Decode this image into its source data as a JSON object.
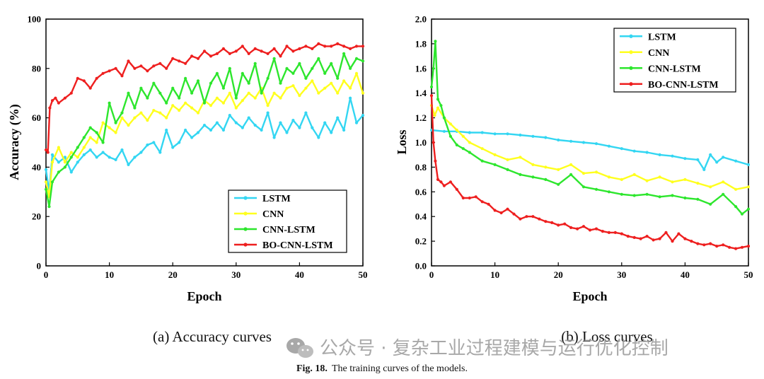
{
  "chart_data": [
    {
      "type": "line",
      "id": "acc",
      "xlabel": "Epoch",
      "ylabel": "Accuracy (%)",
      "xlim": [
        0,
        50
      ],
      "ylim": [
        0,
        100
      ],
      "xticks": [
        0,
        10,
        20,
        30,
        40,
        50
      ],
      "yticks": [
        0,
        20,
        40,
        60,
        80,
        100
      ],
      "legend_position": "bottom-right",
      "series": [
        {
          "name": "LSTM",
          "color": "#33d6f2",
          "x": [
            0,
            0.5,
            1,
            2,
            3,
            4,
            5,
            6,
            7,
            8,
            9,
            10,
            11,
            12,
            13,
            14,
            15,
            16,
            17,
            18,
            19,
            20,
            21,
            22,
            23,
            24,
            25,
            26,
            27,
            28,
            29,
            30,
            31,
            32,
            33,
            34,
            35,
            36,
            37,
            38,
            39,
            40,
            41,
            42,
            43,
            44,
            45,
            46,
            47,
            48,
            49,
            50
          ],
          "values": [
            39,
            30,
            45,
            42,
            44,
            38,
            42,
            45,
            47,
            44,
            46,
            44,
            43,
            47,
            41,
            44,
            46,
            49,
            50,
            46,
            55,
            48,
            50,
            55,
            52,
            54,
            57,
            55,
            58,
            55,
            61,
            58,
            56,
            60,
            57,
            55,
            62,
            52,
            58,
            54,
            59,
            56,
            62,
            56,
            52,
            58,
            54,
            60,
            55,
            68,
            58,
            61
          ]
        },
        {
          "name": "CNN",
          "color": "#ffff1e",
          "x": [
            0,
            0.5,
            1,
            2,
            3,
            4,
            5,
            6,
            7,
            8,
            9,
            10,
            11,
            12,
            13,
            14,
            15,
            16,
            17,
            18,
            19,
            20,
            21,
            22,
            23,
            24,
            25,
            26,
            27,
            28,
            29,
            30,
            31,
            32,
            33,
            34,
            35,
            36,
            37,
            38,
            39,
            40,
            41,
            42,
            43,
            44,
            45,
            46,
            47,
            48,
            49,
            50
          ],
          "values": [
            34,
            28,
            42,
            48,
            42,
            46,
            44,
            48,
            52,
            50,
            58,
            56,
            54,
            60,
            57,
            60,
            62,
            59,
            63,
            62,
            60,
            65,
            63,
            66,
            64,
            62,
            67,
            65,
            68,
            66,
            70,
            64,
            67,
            70,
            68,
            72,
            65,
            70,
            68,
            72,
            73,
            69,
            72,
            75,
            70,
            72,
            74,
            70,
            75,
            72,
            78,
            70
          ]
        },
        {
          "name": "CNN-LSTM",
          "color": "#2de62d",
          "x": [
            0,
            0.5,
            1,
            2,
            3,
            4,
            5,
            6,
            7,
            8,
            9,
            10,
            11,
            12,
            13,
            14,
            15,
            16,
            17,
            18,
            19,
            20,
            21,
            22,
            23,
            24,
            25,
            26,
            27,
            28,
            29,
            30,
            31,
            32,
            33,
            34,
            35,
            36,
            37,
            38,
            39,
            40,
            41,
            42,
            43,
            44,
            45,
            46,
            47,
            48,
            49,
            50
          ],
          "values": [
            31,
            24,
            34,
            38,
            40,
            44,
            48,
            52,
            56,
            54,
            50,
            66,
            58,
            62,
            70,
            64,
            72,
            68,
            74,
            70,
            66,
            72,
            68,
            76,
            70,
            75,
            66,
            74,
            78,
            72,
            80,
            68,
            78,
            74,
            82,
            70,
            76,
            84,
            74,
            80,
            78,
            82,
            76,
            80,
            84,
            78,
            82,
            76,
            86,
            80,
            84,
            83
          ]
        },
        {
          "name": "BO-CNN-LSTM",
          "color": "#ee1f1f",
          "x": [
            0,
            0.3,
            0.6,
            1,
            1.5,
            2,
            3,
            4,
            5,
            6,
            7,
            8,
            9,
            10,
            11,
            12,
            13,
            14,
            15,
            16,
            17,
            18,
            19,
            20,
            21,
            22,
            23,
            24,
            25,
            26,
            27,
            28,
            29,
            30,
            31,
            32,
            33,
            34,
            35,
            36,
            37,
            38,
            39,
            40,
            41,
            42,
            43,
            44,
            45,
            46,
            47,
            48,
            49,
            50
          ],
          "values": [
            47,
            46,
            64,
            67,
            68,
            66,
            68,
            70,
            76,
            75,
            72,
            76,
            78,
            79,
            80,
            77,
            83,
            80,
            81,
            79,
            81,
            82,
            80,
            84,
            83,
            82,
            85,
            84,
            87,
            85,
            86,
            88,
            86,
            87,
            89,
            86,
            88,
            87,
            86,
            88,
            85,
            89,
            87,
            88,
            89,
            88,
            90,
            89,
            89,
            90,
            89,
            88,
            89,
            89
          ]
        }
      ]
    },
    {
      "type": "line",
      "id": "loss",
      "xlabel": "Epoch",
      "ylabel": "Loss",
      "xlim": [
        0,
        50
      ],
      "ylim": [
        0.0,
        2.0
      ],
      "xticks": [
        0,
        10,
        20,
        30,
        40,
        50
      ],
      "yticks": [
        0.0,
        0.2,
        0.4,
        0.6,
        0.8,
        1.0,
        1.2,
        1.4,
        1.6,
        1.8,
        2.0
      ],
      "legend_position": "top-right",
      "series": [
        {
          "name": "LSTM",
          "color": "#33d6f2",
          "x": [
            0,
            2,
            4,
            6,
            8,
            10,
            12,
            14,
            16,
            18,
            20,
            22,
            24,
            26,
            28,
            30,
            32,
            34,
            36,
            38,
            40,
            42,
            43,
            44,
            45,
            46,
            48,
            50
          ],
          "values": [
            1.1,
            1.09,
            1.09,
            1.08,
            1.08,
            1.07,
            1.07,
            1.06,
            1.05,
            1.04,
            1.02,
            1.01,
            1.0,
            0.99,
            0.97,
            0.95,
            0.93,
            0.92,
            0.9,
            0.89,
            0.87,
            0.86,
            0.78,
            0.9,
            0.84,
            0.88,
            0.85,
            0.82
          ]
        },
        {
          "name": "CNN",
          "color": "#ffff1e",
          "x": [
            0,
            0.5,
            1,
            2,
            3,
            4,
            5,
            6,
            8,
            10,
            12,
            14,
            16,
            18,
            20,
            22,
            24,
            26,
            28,
            30,
            32,
            34,
            36,
            38,
            40,
            42,
            44,
            46,
            48,
            50
          ],
          "values": [
            1.3,
            1.22,
            1.28,
            1.2,
            1.15,
            1.1,
            1.05,
            1.0,
            0.95,
            0.9,
            0.86,
            0.88,
            0.82,
            0.8,
            0.78,
            0.82,
            0.75,
            0.76,
            0.72,
            0.7,
            0.74,
            0.69,
            0.72,
            0.68,
            0.7,
            0.67,
            0.64,
            0.68,
            0.62,
            0.64
          ]
        },
        {
          "name": "CNN-LSTM",
          "color": "#2de62d",
          "x": [
            0,
            0.3,
            0.6,
            1,
            1.5,
            2,
            3,
            4,
            5,
            6,
            8,
            10,
            12,
            14,
            16,
            18,
            20,
            22,
            24,
            26,
            28,
            30,
            32,
            34,
            36,
            38,
            40,
            42,
            44,
            46,
            48,
            49,
            50
          ],
          "values": [
            1.45,
            1.6,
            1.82,
            1.35,
            1.3,
            1.2,
            1.05,
            0.98,
            0.95,
            0.92,
            0.85,
            0.82,
            0.78,
            0.74,
            0.72,
            0.7,
            0.66,
            0.74,
            0.64,
            0.62,
            0.6,
            0.58,
            0.57,
            0.58,
            0.56,
            0.57,
            0.55,
            0.54,
            0.5,
            0.58,
            0.48,
            0.42,
            0.46
          ]
        },
        {
          "name": "BO-CNN-LSTM",
          "color": "#ee1f1f",
          "x": [
            0,
            0.3,
            0.6,
            1,
            1.5,
            2,
            3,
            4,
            5,
            6,
            7,
            8,
            9,
            10,
            11,
            12,
            13,
            14,
            15,
            16,
            17,
            18,
            19,
            20,
            21,
            22,
            23,
            24,
            25,
            26,
            27,
            28,
            29,
            30,
            31,
            32,
            33,
            34,
            35,
            36,
            37,
            38,
            39,
            40,
            41,
            42,
            43,
            44,
            45,
            46,
            47,
            48,
            49,
            50
          ],
          "values": [
            1.38,
            1.0,
            0.85,
            0.7,
            0.68,
            0.65,
            0.68,
            0.62,
            0.55,
            0.55,
            0.56,
            0.52,
            0.5,
            0.45,
            0.43,
            0.46,
            0.42,
            0.38,
            0.4,
            0.4,
            0.38,
            0.36,
            0.35,
            0.33,
            0.34,
            0.31,
            0.3,
            0.32,
            0.29,
            0.3,
            0.28,
            0.27,
            0.27,
            0.26,
            0.24,
            0.23,
            0.22,
            0.24,
            0.21,
            0.22,
            0.27,
            0.2,
            0.26,
            0.22,
            0.2,
            0.18,
            0.17,
            0.18,
            0.16,
            0.17,
            0.15,
            0.14,
            0.15,
            0.16
          ]
        }
      ]
    }
  ],
  "captions": {
    "sub_a": "(a) Accuracy curves",
    "sub_b": "(b) Loss curves",
    "fig_label": "Fig. 18.",
    "fig_text": "The training curves of the models."
  },
  "watermark": {
    "text": "公众号 · 复杂工业过程建模与运行优化控制",
    "icon": "wechat-icon"
  }
}
